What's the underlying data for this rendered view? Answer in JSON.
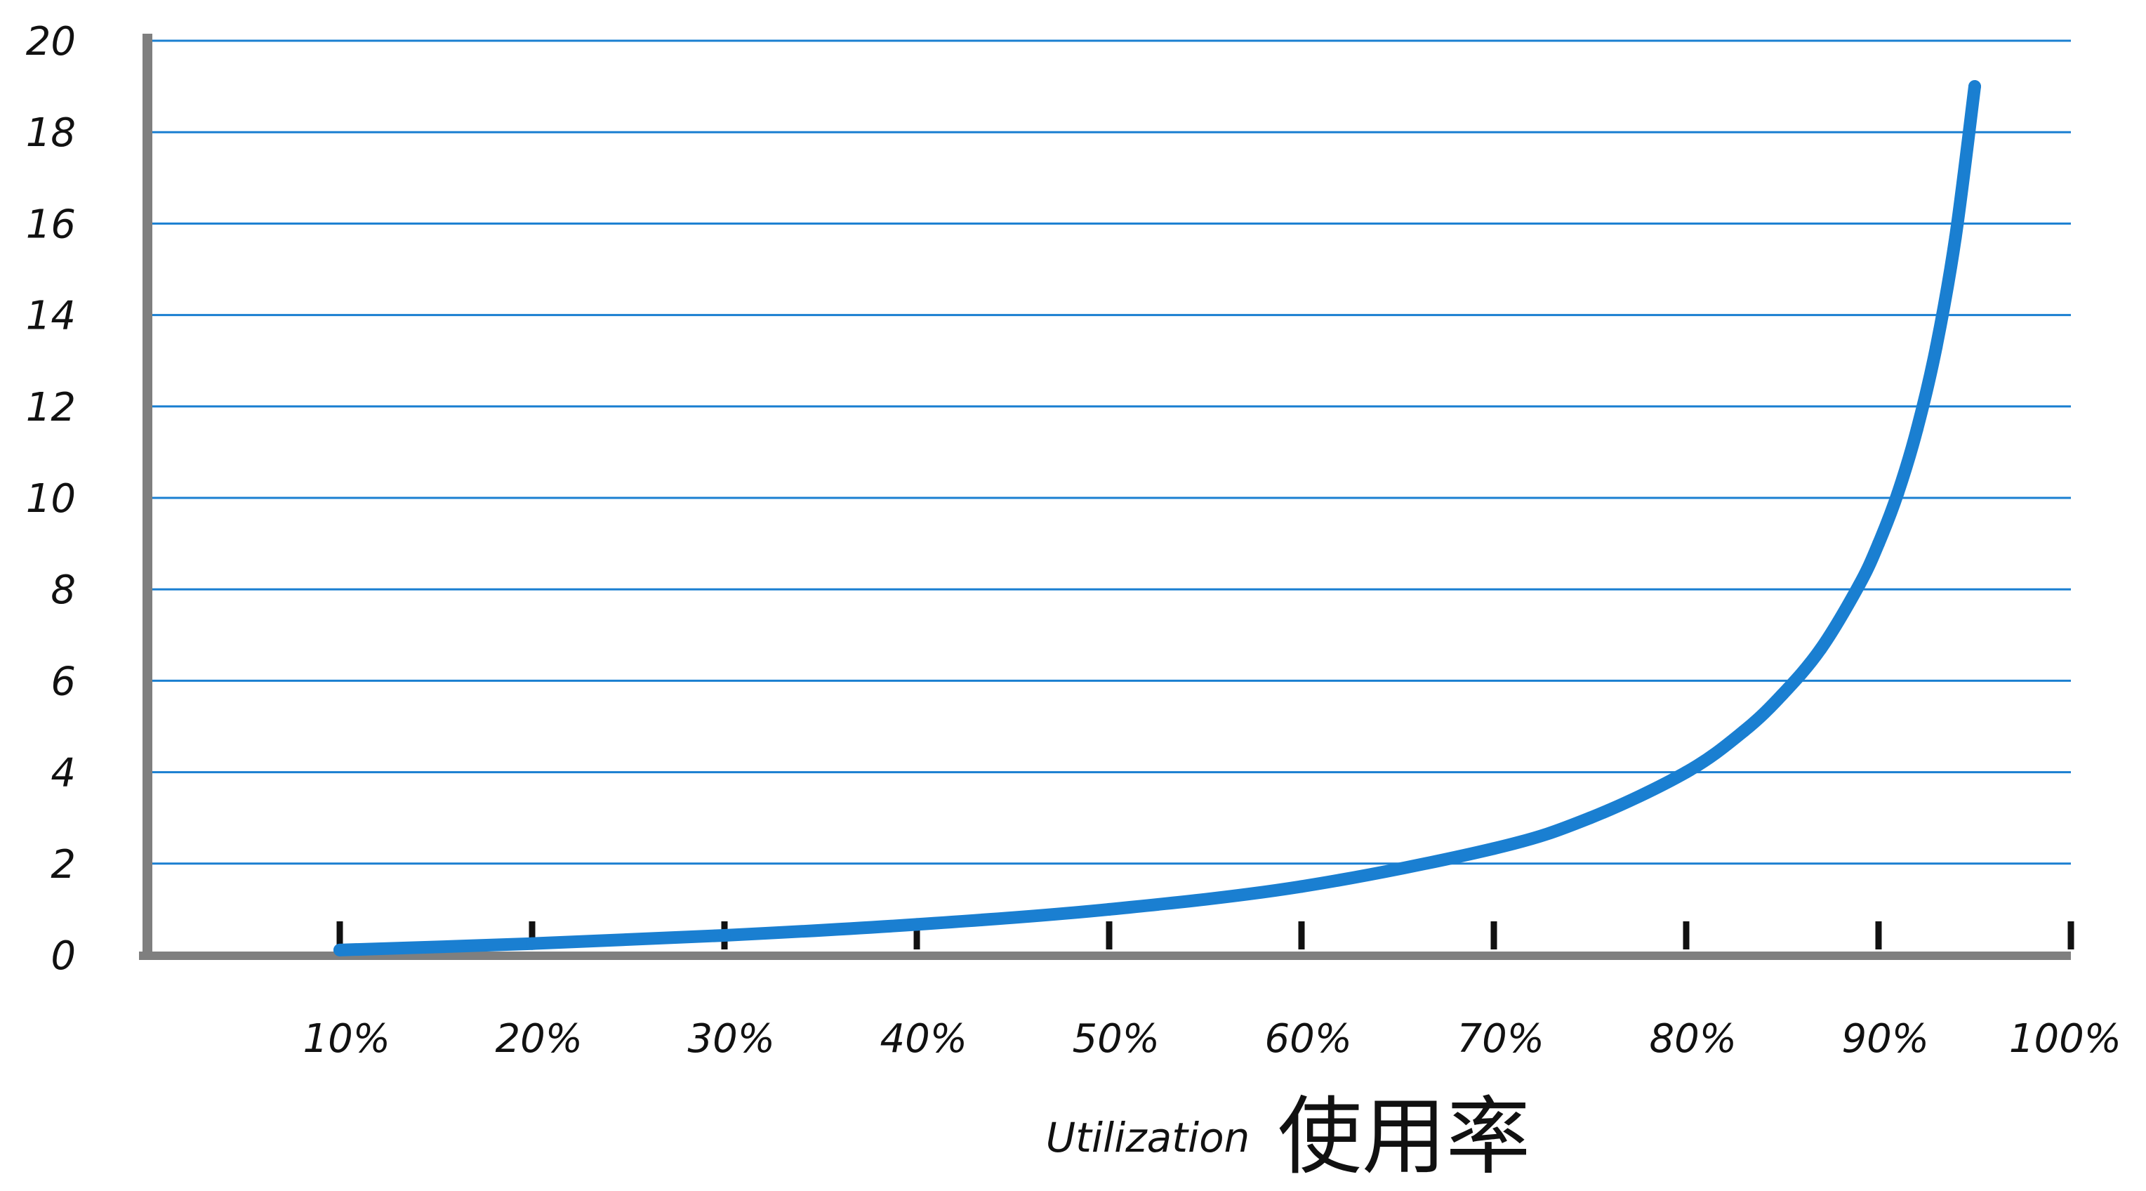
{
  "chart_data": {
    "type": "line",
    "title": "",
    "xlabel": "Utilization",
    "xlabel_secondary": "使用率",
    "ylabel": "",
    "x_tick_labels": [
      "10%",
      "20%",
      "30%",
      "40%",
      "50%",
      "60%",
      "70%",
      "80%",
      "90%",
      "100%"
    ],
    "x_ticks": [
      10,
      20,
      30,
      40,
      50,
      60,
      70,
      80,
      90,
      100
    ],
    "y_ticks": [
      0,
      2,
      4,
      6,
      8,
      10,
      12,
      14,
      16,
      18,
      20
    ],
    "y_tick_labels": [
      "0",
      "2",
      "4",
      "6",
      "8",
      "10",
      "12",
      "14",
      "16",
      "18",
      "20"
    ],
    "xlim": [
      0,
      100
    ],
    "ylim": [
      0,
      20
    ],
    "grid": "horizontal",
    "series": [
      {
        "x": [
          10,
          20,
          30,
          40,
          50,
          60,
          70,
          75,
          80,
          83,
          85,
          87,
          89,
          90,
          91,
          92,
          93,
          94,
          95
        ],
        "values": [
          0.11,
          0.25,
          0.43,
          0.67,
          1.0,
          1.5,
          2.33,
          3.0,
          4.0,
          4.9,
          5.7,
          6.7,
          8.1,
          9.0,
          10.1,
          11.5,
          13.3,
          15.7,
          19.0
        ]
      }
    ],
    "colors": {
      "line": "#1a7fd1",
      "grid": "#1a7fd1",
      "axis": "#7f7f7f",
      "tick": "#111111"
    }
  }
}
